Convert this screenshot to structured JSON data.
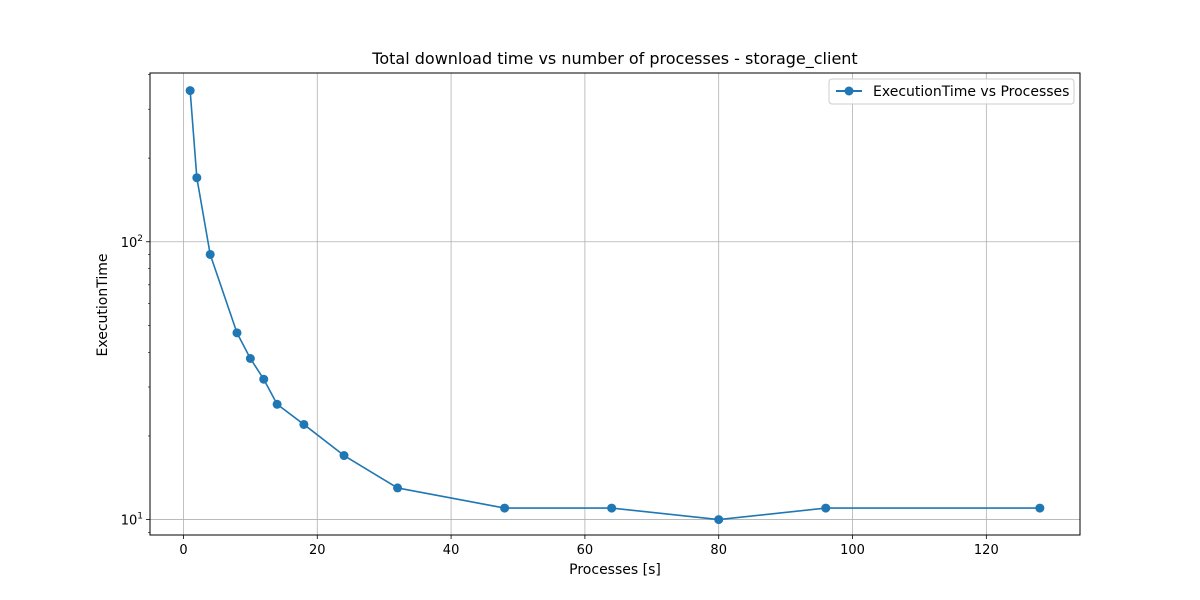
{
  "chart_data": {
    "type": "line",
    "title": "Total download time vs number of processes - storage_client",
    "xlabel": "Processes [s]",
    "ylabel": "ExecutionTime",
    "xscale": "linear",
    "yscale": "log",
    "xlim": [
      -5,
      134
    ],
    "ylim": [
      8.8,
      405
    ],
    "xticks": [
      0,
      20,
      40,
      60,
      80,
      100,
      120
    ],
    "xtick_labels": [
      "0",
      "20",
      "40",
      "60",
      "80",
      "100",
      "120"
    ],
    "yticks": [
      10,
      100
    ],
    "ytick_labels": [
      {
        "base": "10",
        "exp": "1"
      },
      {
        "base": "10",
        "exp": "2"
      }
    ],
    "grid": true,
    "legend": "top-right",
    "series": [
      {
        "name": "ExecutionTime vs Processes",
        "color": "#1f77b4",
        "marker": "circle",
        "x": [
          1,
          2,
          4,
          8,
          10,
          12,
          14,
          18,
          24,
          32,
          48,
          64,
          80,
          96,
          128
        ],
        "y": [
          350,
          170,
          90,
          47,
          38,
          32,
          26,
          22,
          17,
          13,
          11,
          11,
          10,
          11,
          11
        ]
      }
    ]
  }
}
